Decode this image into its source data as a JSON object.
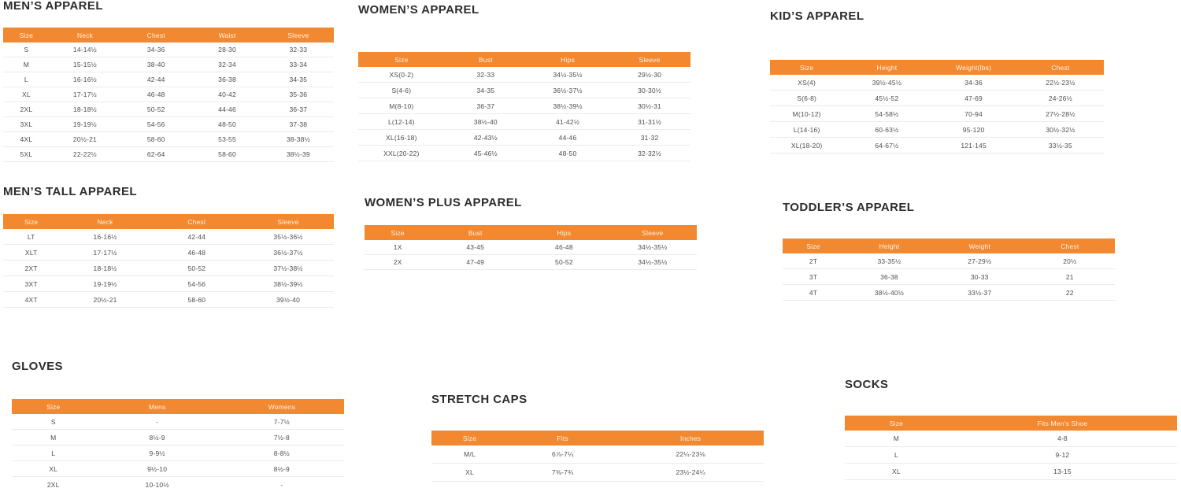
{
  "accent_color": "#F2882F",
  "header_text_color": "#FDF4E6",
  "body_text_color": "#4e4e4e",
  "title_text_color": "#2d2d2d",
  "tables": [
    {
      "id": "mens",
      "title": "MEN’S APPAREL",
      "headers": [
        "Size",
        "Neck",
        "Chest",
        "Waist",
        "Sleeve"
      ],
      "rows": [
        [
          "S",
          "14-14½",
          "34-36",
          "28-30",
          "32-33"
        ],
        [
          "M",
          "15-15½",
          "38-40",
          "32-34",
          "33-34"
        ],
        [
          "L",
          "16-16½",
          "42-44",
          "36-38",
          "34-35"
        ],
        [
          "XL",
          "17-17½",
          "46-48",
          "40-42",
          "35-36"
        ],
        [
          "2XL",
          "18-18½",
          "50-52",
          "44-46",
          "36-37"
        ],
        [
          "3XL",
          "19-19½",
          "54-56",
          "48-50",
          "37-38"
        ],
        [
          "4XL",
          "20½-21",
          "58-60",
          "53-55",
          "38-38½"
        ],
        [
          "5XL",
          "22-22½",
          "62-64",
          "58-60",
          "38½-39"
        ]
      ]
    },
    {
      "id": "womens",
      "title": "WOMEN’S APPAREL",
      "headers": [
        "Size",
        "Bust",
        "Hips",
        "Sleeve"
      ],
      "rows": [
        [
          "XS(0-2)",
          "32-33",
          "34½-35½",
          "29½-30"
        ],
        [
          "S(4-6)",
          "34-35",
          "36½-37½",
          "30-30½"
        ],
        [
          "M(8-10)",
          "36-37",
          "38½-39½",
          "30½-31"
        ],
        [
          "L(12-14)",
          "38½-40",
          "41-42½",
          "31-31½"
        ],
        [
          "XL(16-18)",
          "42-43½",
          "44-46",
          "31-32"
        ],
        [
          "XXL(20-22)",
          "45-46½",
          "48-50",
          "32-32½"
        ]
      ]
    },
    {
      "id": "kids",
      "title": "KID’S APPAREL",
      "headers": [
        "Size",
        "Height",
        "Weight(lbs)",
        "Chest"
      ],
      "rows": [
        [
          "XS(4)",
          "39½-45½",
          "34-36",
          "22½-23½"
        ],
        [
          "S(6-8)",
          "45½-52",
          "47-69",
          "24-26½"
        ],
        [
          "M(10-12)",
          "54-58½",
          "70-94",
          "27½-28½"
        ],
        [
          "L(14-16)",
          "60-63½",
          "95-120",
          "30½-32½"
        ],
        [
          "XL(18-20)",
          "64-67½",
          "121-145",
          "33½-35"
        ]
      ]
    },
    {
      "id": "mens_tall",
      "title": "MEN’S TALL APPAREL",
      "headers": [
        "Size",
        "Neck",
        "Chest",
        "Sleeve"
      ],
      "rows": [
        [
          "LT",
          "16-16½",
          "42-44",
          "35½-36½"
        ],
        [
          "XLT",
          "17-17½",
          "46-48",
          "36½-37½"
        ],
        [
          "2XT",
          "18-18½",
          "50-52",
          "37½-38½"
        ],
        [
          "3XT",
          "19-19½",
          "54-56",
          "38½-39½"
        ],
        [
          "4XT",
          "20½-21",
          "58-60",
          "39½-40"
        ]
      ]
    },
    {
      "id": "womens_plus",
      "title": "WOMEN’S PLUS APPAREL",
      "headers": [
        "Size",
        "Bust",
        "Hips",
        "Sleeve"
      ],
      "rows": [
        [
          "1X",
          "43-45",
          "46-48",
          "34½-35½"
        ],
        [
          "2X",
          "47-49",
          "50-52",
          "34½-35½"
        ]
      ]
    },
    {
      "id": "toddlers",
      "title": "TODDLER’S APPAREL",
      "headers": [
        "Size",
        "Height",
        "Weight",
        "Chest"
      ],
      "rows": [
        [
          "2T",
          "33-35½",
          "27-29½",
          "20½"
        ],
        [
          "3T",
          "36-38",
          "30-33",
          "21"
        ],
        [
          "4T",
          "38½-40½",
          "33½-37",
          "22"
        ]
      ]
    },
    {
      "id": "gloves",
      "title": "GLOVES",
      "headers": [
        "Size",
        "Mens",
        "Womens"
      ],
      "rows": [
        [
          "S",
          "-",
          "7-7½"
        ],
        [
          "M",
          "8½-9",
          "7½-8"
        ],
        [
          "L",
          "9-9½",
          "8-8½"
        ],
        [
          "XL",
          "9½-10",
          "8½-9"
        ],
        [
          "2XL",
          "10-10½",
          "-"
        ]
      ]
    },
    {
      "id": "caps",
      "title": "STRETCH CAPS",
      "headers": [
        "Size",
        "Fits",
        "Inches"
      ],
      "rows": [
        [
          "M/L",
          "6⅞-7¼",
          "22¼-23⅛"
        ],
        [
          "XL",
          "7⅜-7¾",
          "23½-24¼"
        ]
      ]
    },
    {
      "id": "socks",
      "title": "SOCKS",
      "headers": [
        "Size",
        "Fits Men's Shoe"
      ],
      "rows": [
        [
          "M",
          "4-8"
        ],
        [
          "L",
          "9-12"
        ],
        [
          "XL",
          "13-15"
        ]
      ]
    }
  ]
}
